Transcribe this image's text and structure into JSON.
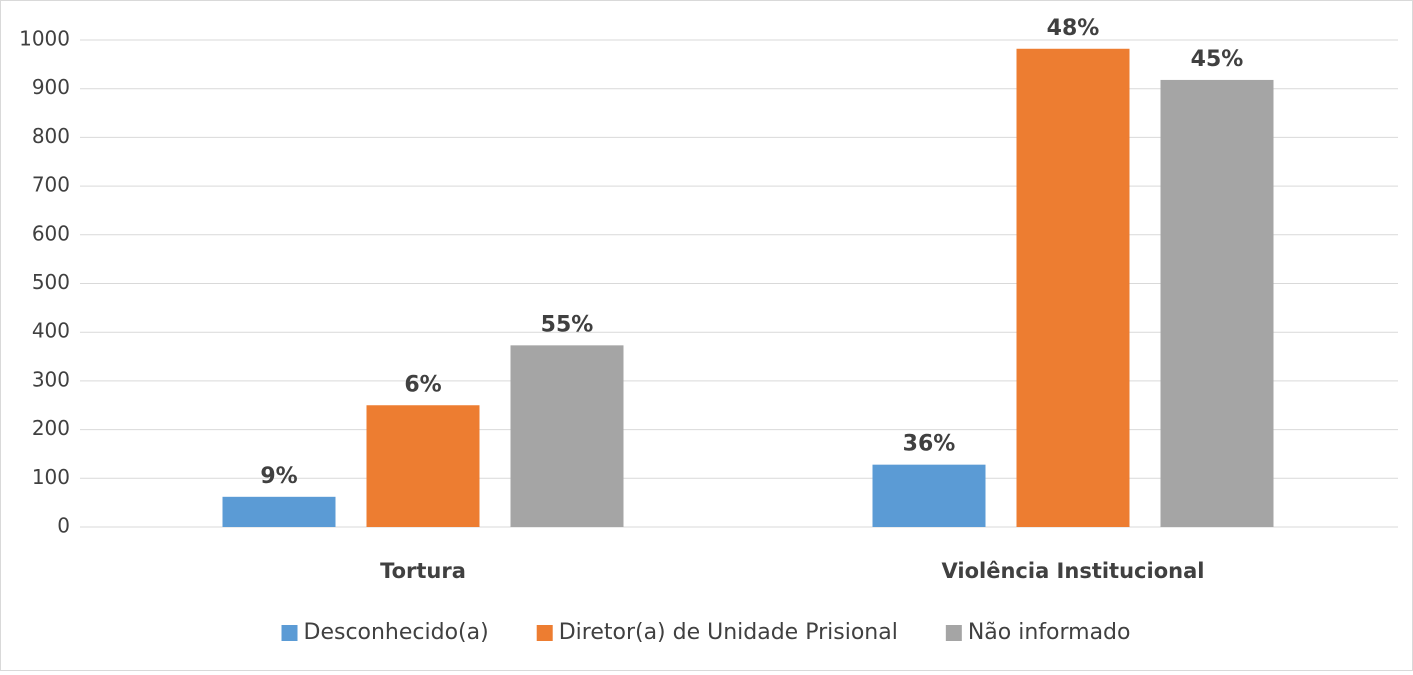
{
  "chart_data": {
    "type": "bar",
    "categories": [
      "Tortura",
      "Violência Institucional"
    ],
    "series": [
      {
        "name": "Desconhecido(a)",
        "color": "#5b9bd5",
        "values": [
          62,
          128
        ],
        "data_labels": [
          "9%",
          "36%"
        ]
      },
      {
        "name": "Diretor(a) de Unidade Prisional",
        "color": "#ed7d31",
        "values": [
          250,
          982
        ],
        "data_labels": [
          "6%",
          "48%"
        ]
      },
      {
        "name": "Não informado",
        "color": "#a5a5a5",
        "values": [
          373,
          918
        ],
        "data_labels": [
          "55%",
          "45%"
        ]
      }
    ],
    "ylim": [
      0,
      1000
    ],
    "yticks": [
      0,
      100,
      200,
      300,
      400,
      500,
      600,
      700,
      800,
      900,
      1000
    ],
    "grid": true,
    "legend": "bottom"
  }
}
